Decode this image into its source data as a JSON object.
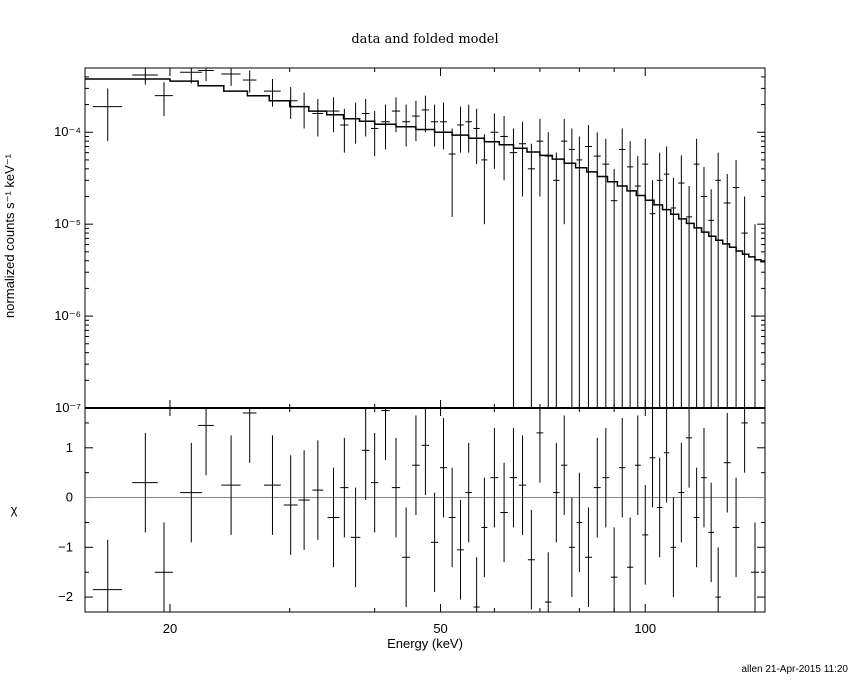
{
  "chart_data": [
    {
      "type": "scatter",
      "title": "data and folded model",
      "xlabel": "",
      "ylabel": "normalized counts s⁻¹ keV⁻¹",
      "xscale": "log",
      "yscale": "log",
      "xlim": [
        15,
        150
      ],
      "ylim": [
        1e-07,
        0.0005
      ],
      "ytick_labels": [
        "10⁻⁷",
        "10⁻⁶",
        "10⁻⁵",
        "10⁻⁴"
      ],
      "ytick_values": [
        1e-07,
        1e-06,
        1e-05,
        0.0001
      ],
      "series": [
        {
          "kind": "data-with-errors",
          "color": "#000000",
          "x": [
            16.2,
            18.4,
            19.6,
            21.5,
            22.6,
            24.6,
            26.2,
            28.3,
            30.1,
            31.5,
            33.0,
            34.8,
            36.1,
            37.5,
            38.8,
            40.0,
            41.5,
            43.0,
            44.5,
            46.0,
            47.5,
            49.0,
            50.5,
            52.0,
            53.5,
            55.0,
            56.5,
            58.0,
            60.0,
            62.0,
            64.0,
            66.0,
            68.0,
            70.0,
            72.0,
            74.0,
            76.0,
            78.0,
            80.0,
            82.5,
            85.0,
            87.5,
            90.0,
            92.5,
            95.0,
            97.5,
            100.0,
            102.5,
            105.0,
            107.5,
            110.0,
            113.0,
            116.0,
            119.0,
            122.0,
            125.0,
            128.0,
            132.0,
            136.0,
            140.0,
            145.0
          ],
          "xerr": [
            0.8,
            0.8,
            0.6,
            0.8,
            0.6,
            0.8,
            0.6,
            0.8,
            0.7,
            0.6,
            0.6,
            0.7,
            0.5,
            0.6,
            0.5,
            0.5,
            0.6,
            0.6,
            0.6,
            0.6,
            0.6,
            0.6,
            0.6,
            0.6,
            0.6,
            0.6,
            0.6,
            0.6,
            0.8,
            0.8,
            0.8,
            0.8,
            0.8,
            0.8,
            0.8,
            0.8,
            0.8,
            0.8,
            0.8,
            1.0,
            1.0,
            1.0,
            1.0,
            1.0,
            1.0,
            1.0,
            1.0,
            1.0,
            1.0,
            1.0,
            1.0,
            1.2,
            1.2,
            1.2,
            1.2,
            1.2,
            1.2,
            1.5,
            1.5,
            1.5,
            2.0
          ],
          "y": [
            0.00019,
            0.00042,
            0.00025,
            0.00045,
            0.00047,
            0.00043,
            0.00037,
            0.00028,
            0.00022,
            0.00019,
            0.00016,
            0.00017,
            0.00012,
            0.00014,
            0.00016,
            0.00011,
            0.00013,
            0.00017,
            0.00013,
            0.00015,
            0.000175,
            0.00013,
            0.00013,
            5.8e-05,
            0.00012,
            0.00013,
            0.00011,
            5e-05,
            0.0001,
            9e-05,
            6e-05,
            7.5e-05,
            4e-05,
            8e-05,
            5.5e-05,
            3e-05,
            8e-05,
            6.5e-05,
            5e-05,
            7e-05,
            5.5e-05,
            4.5e-05,
            1.8e-05,
            6.5e-05,
            4.2e-05,
            2.6e-05,
            4.5e-05,
            1.3e-05,
            3e-05,
            3.5e-05,
            1.5e-05,
            2.8e-05,
            1.2e-05,
            4.5e-05,
            2e-05,
            1.1e-05,
            3e-05,
            1.7e-05,
            2.5e-05,
            8e-06,
            1e-06
          ],
          "ylo": [
            8e-05,
            0.00033,
            0.00015,
            0.00034,
            0.00036,
            0.00032,
            0.00027,
            0.00019,
            0.00014,
            0.00011,
            9e-05,
            0.0001,
            6e-05,
            7.5e-05,
            9e-05,
            5.5e-05,
            6.5e-05,
            0.0001,
            7e-05,
            8e-05,
            0.0001,
            7e-05,
            6.5e-05,
            1.2e-05,
            6e-05,
            6e-05,
            4.5e-05,
            1e-05,
            4e-05,
            3e-05,
            1e-07,
            2e-05,
            1e-07,
            2e-05,
            1e-07,
            1e-07,
            1e-05,
            1e-07,
            1e-07,
            1e-07,
            1e-07,
            1e-07,
            1e-07,
            1e-07,
            1e-07,
            1e-07,
            1e-07,
            1e-07,
            1e-07,
            1e-07,
            1e-07,
            1e-07,
            1e-07,
            1e-07,
            1e-07,
            1e-07,
            1e-07,
            1e-07,
            1e-07,
            1e-07,
            1e-07
          ],
          "yhi": [
            0.0003,
            0.0005,
            0.00035,
            0.0005,
            0.0005,
            0.0005,
            0.00047,
            0.00038,
            0.00031,
            0.00027,
            0.00023,
            0.00024,
            0.00018,
            0.00021,
            0.00023,
            0.00017,
            0.0002,
            0.00024,
            0.0002,
            0.00022,
            0.00025,
            0.0002,
            0.00021,
            0.00011,
            0.00019,
            0.0002,
            0.00018,
            9.5e-05,
            0.00016,
            0.00015,
            0.00011,
            0.00013,
            7.5e-05,
            0.00014,
            0.0001,
            6e-05,
            0.00014,
            0.00011,
            9e-05,
            0.00012,
            0.0001,
            8.5e-05,
            4e-05,
            0.00011,
            8e-05,
            5.5e-05,
            8.5e-05,
            3e-05,
            6e-05,
            7e-05,
            3.2e-05,
            5.6e-05,
            2.6e-05,
            8.5e-05,
            4.2e-05,
            2.4e-05,
            6e-05,
            3.5e-05,
            5e-05,
            2e-05,
            1e-05
          ]
        },
        {
          "kind": "model-step",
          "color": "#000000",
          "edges": [
            15.0,
            20.0,
            22.0,
            24.0,
            26.0,
            28.0,
            30.0,
            32.0,
            34.0,
            36.0,
            38.0,
            40.0,
            43.0,
            46.0,
            49.0,
            52.0,
            55.0,
            58.0,
            61.0,
            64.0,
            67.0,
            70.0,
            73.0,
            76.0,
            79.0,
            82.0,
            85.0,
            88.0,
            91.0,
            94.0,
            97.0,
            100.0,
            103.0,
            106.0,
            109.0,
            112.0,
            115.0,
            118.0,
            121.0,
            124.0,
            127.0,
            130.0,
            133.0,
            136.0,
            139.0,
            142.0,
            145.0,
            148.0,
            150.0
          ],
          "values": [
            0.00038,
            0.00036,
            0.00032,
            0.00028,
            0.00025,
            0.00022,
            0.00019,
            0.00017,
            0.000155,
            0.00014,
            0.000132,
            0.000122,
            0.000115,
            0.000107,
            0.0001,
            9.3e-05,
            8.6e-05,
            7.9e-05,
            7.3e-05,
            6.7e-05,
            6.1e-05,
            5.6e-05,
            5.1e-05,
            4.6e-05,
            4.1e-05,
            3.7e-05,
            3.3e-05,
            2.9e-05,
            2.6e-05,
            2.3e-05,
            2.05e-05,
            1.82e-05,
            1.62e-05,
            1.44e-05,
            1.28e-05,
            1.14e-05,
            1.02e-05,
            9.1e-06,
            8.2e-06,
            7.4e-06,
            6.7e-06,
            6.1e-06,
            5.6e-06,
            5.1e-06,
            4.7e-06,
            4.4e-06,
            4.1e-06,
            3.9e-06
          ]
        }
      ]
    },
    {
      "type": "scatter",
      "xlabel": "Energy (keV)",
      "ylabel": "χ",
      "xscale": "log",
      "xlim": [
        15,
        150
      ],
      "ylim": [
        -2.3,
        1.8
      ],
      "xtick_labels": [
        "20",
        "50",
        "100"
      ],
      "xtick_values": [
        20,
        50,
        100
      ],
      "ytick_labels": [
        "−2",
        "−1",
        "0",
        "1"
      ],
      "ytick_values": [
        -2,
        -1,
        0,
        1
      ],
      "reference_line": {
        "y": 0,
        "color": "#22cc22"
      },
      "series": [
        {
          "kind": "residuals",
          "color": "#000000",
          "x": [
            16.2,
            18.4,
            19.6,
            21.5,
            22.6,
            24.6,
            26.2,
            28.3,
            30.1,
            31.5,
            33.0,
            34.8,
            36.1,
            37.5,
            38.8,
            40.0,
            41.5,
            43.0,
            44.5,
            46.0,
            47.5,
            49.0,
            50.5,
            52.0,
            53.5,
            55.0,
            56.5,
            58.0,
            60.0,
            62.0,
            64.0,
            66.0,
            68.0,
            70.0,
            72.0,
            74.0,
            76.0,
            78.0,
            80.0,
            82.5,
            85.0,
            87.5,
            90.0,
            92.5,
            95.0,
            97.5,
            100.0,
            102.5,
            105.0,
            107.5,
            110.0,
            113.0,
            116.0,
            119.0,
            122.0,
            125.0,
            128.0,
            132.0,
            136.0,
            140.0,
            145.0
          ],
          "xerr": [
            0.8,
            0.8,
            0.6,
            0.8,
            0.6,
            0.8,
            0.6,
            0.8,
            0.7,
            0.6,
            0.6,
            0.7,
            0.5,
            0.6,
            0.5,
            0.5,
            0.6,
            0.6,
            0.6,
            0.6,
            0.6,
            0.6,
            0.6,
            0.6,
            0.6,
            0.6,
            0.6,
            0.6,
            0.8,
            0.8,
            0.8,
            0.8,
            0.8,
            0.8,
            0.8,
            0.8,
            0.8,
            0.8,
            0.8,
            1.0,
            1.0,
            1.0,
            1.0,
            1.0,
            1.0,
            1.0,
            1.0,
            1.0,
            1.0,
            1.0,
            1.0,
            1.2,
            1.2,
            1.2,
            1.2,
            1.2,
            1.2,
            1.5,
            1.5,
            1.5,
            2.0
          ],
          "y": [
            -1.85,
            0.3,
            -1.5,
            0.1,
            1.45,
            0.25,
            1.7,
            0.25,
            -0.15,
            -0.05,
            0.15,
            -0.4,
            0.2,
            -0.8,
            0.95,
            0.3,
            1.75,
            0.2,
            -1.2,
            0.65,
            1.05,
            -0.9,
            0.6,
            -0.4,
            -1.05,
            0.1,
            -2.2,
            -0.6,
            0.4,
            -0.3,
            0.4,
            0.25,
            -1.25,
            1.3,
            -2.1,
            0.1,
            0.65,
            -1.0,
            -0.5,
            -1.2,
            0.2,
            0.4,
            -1.6,
            0.6,
            -1.4,
            0.65,
            -0.75,
            0.8,
            -0.2,
            0.9,
            -1.0,
            0.1,
            1.2,
            -0.4,
            0.4,
            -0.7,
            -2.0,
            0.7,
            -0.6,
            1.5,
            -1.5
          ],
          "yerr": [
            1.0,
            1.0,
            1.0,
            1.0,
            1.0,
            1.0,
            1.0,
            1.0,
            1.0,
            1.0,
            1.0,
            1.0,
            1.0,
            1.0,
            1.0,
            1.0,
            1.0,
            1.0,
            1.0,
            1.0,
            1.0,
            1.0,
            1.0,
            1.0,
            1.0,
            1.0,
            1.0,
            1.0,
            1.0,
            1.0,
            1.0,
            1.0,
            1.0,
            1.0,
            1.0,
            1.0,
            1.0,
            1.0,
            1.0,
            1.0,
            1.0,
            1.0,
            1.0,
            1.0,
            1.0,
            1.0,
            1.0,
            1.0,
            1.0,
            1.0,
            1.0,
            1.0,
            1.0,
            1.0,
            1.0,
            1.0,
            1.0,
            1.0,
            1.0,
            1.0,
            1.0
          ]
        }
      ]
    }
  ],
  "footer": "allen 21-Apr-2015 11:20"
}
